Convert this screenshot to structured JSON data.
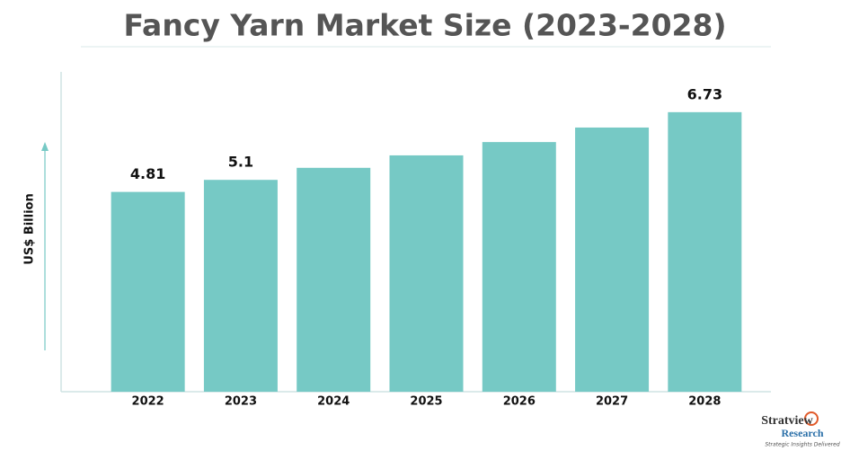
{
  "chart_data": {
    "type": "bar",
    "title": "Fancy Yarn Market Size (2023-2028)",
    "y_label": "US$ Billion",
    "categories": [
      "2022",
      "2023",
      "2024",
      "2025",
      "2026",
      "2027",
      "2028"
    ],
    "values": [
      4.81,
      5.1,
      5.39,
      5.69,
      6.01,
      6.36,
      6.73
    ],
    "value_labels": [
      "4.81",
      "5.1",
      null,
      null,
      null,
      null,
      "6.73"
    ],
    "color": "#76c9c5",
    "ylim": [
      0,
      7.7
    ],
    "grid": false
  },
  "logo": {
    "name": "Stratview",
    "sub": "Research",
    "tagline": "Strategic Insights Delivered"
  }
}
